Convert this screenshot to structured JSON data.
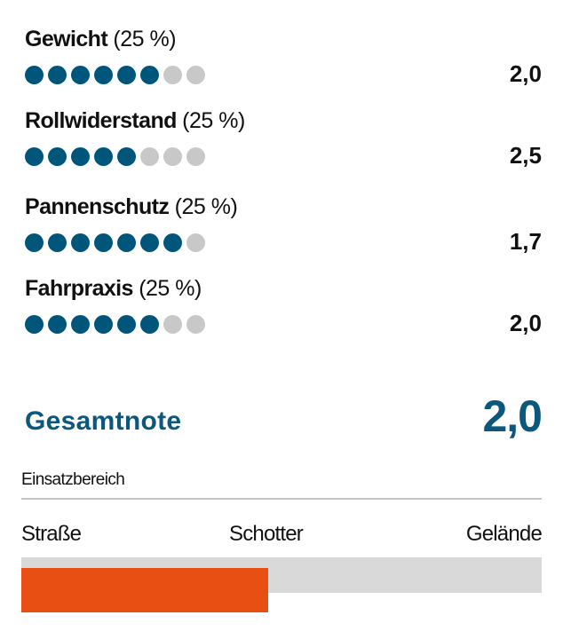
{
  "criteria": [
    {
      "name": "Gewicht",
      "weight": "(25 %)",
      "score": "2,0",
      "dots_filled": 6,
      "dots_total": 8
    },
    {
      "name": "Rollwiderstand",
      "weight": "(25 %)",
      "score": "2,5",
      "dots_filled": 5,
      "dots_total": 8
    },
    {
      "name": "Pannenschutz",
      "weight": "(25 %)",
      "score": "1,7",
      "dots_filled": 7,
      "dots_total": 8
    },
    {
      "name": "Fahrpraxis",
      "weight": "(25 %)",
      "score": "2,0",
      "dots_filled": 6,
      "dots_total": 8
    }
  ],
  "total": {
    "label": "Gesamtnote",
    "score": "2,0"
  },
  "usage": {
    "title": "Einsatzbereich",
    "scale": [
      "Straße",
      "Schotter",
      "Gelände"
    ],
    "fill_percent": 47
  },
  "colors": {
    "accent": "#0b577d",
    "dot_on": "#00557a",
    "dot_off": "#c8c8c8",
    "bar_fill": "#e84f12",
    "bar_bg": "#d9d9d9"
  }
}
